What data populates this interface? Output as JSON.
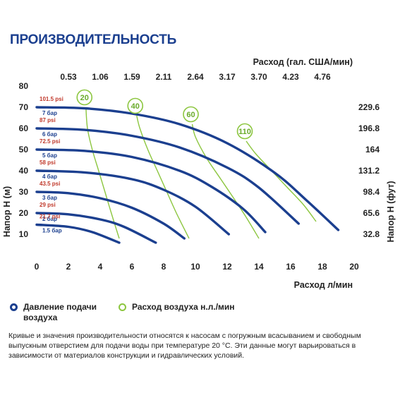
{
  "title": "ПРОИЗВОДИТЕЛЬНОСТЬ",
  "legend": {
    "pressure": "Давление подачи воздуха",
    "air": "Расход воздуха н.л./мин"
  },
  "footnote": "Кривые и значения производительности относятся к насосам с погружным всасыванием и свободным выпускным отверстием для подачи воды при температуре 20 °C. Эти данные могут варьироваться в зависимости от материалов конструкции и гидравлических условий.",
  "chart_data": {
    "type": "line",
    "xlabel": "Расход л/мин",
    "x2label": "Расход (гал. США/мин)",
    "ylabel": "Напор H (м)",
    "y2label": "Напор H (фут)",
    "xlim": [
      0,
      20
    ],
    "ylim": [
      0,
      80
    ],
    "x_ticks": [
      "0",
      "2",
      "4",
      "6",
      "8",
      "10",
      "12",
      "14",
      "16",
      "18",
      "20"
    ],
    "y_ticks": [
      "10",
      "20",
      "30",
      "40",
      "50",
      "60",
      "70",
      "80"
    ],
    "x2_ticks": [
      "0.53",
      "1.06",
      "1.59",
      "2.11",
      "2.64",
      "3.17",
      "3.70",
      "4.23",
      "4.76"
    ],
    "y2_ticks": [
      "32.8",
      "65.6",
      "98.4",
      "131.2",
      "164",
      "196.8",
      "229.6"
    ],
    "grid": false,
    "pressure_color": "#1b3f8f",
    "air_color": "#8cc63f",
    "pressure_curves": [
      {
        "psi": "101.5 psi",
        "bar": "7 бар",
        "points": [
          [
            0,
            70
          ],
          [
            3,
            69.5
          ],
          [
            6,
            67
          ],
          [
            9,
            62
          ],
          [
            12,
            53
          ],
          [
            15,
            39
          ],
          [
            17,
            26
          ],
          [
            19,
            12
          ]
        ]
      },
      {
        "psi": "87 psi",
        "bar": "6 бар",
        "points": [
          [
            0,
            60
          ],
          [
            3,
            59.3
          ],
          [
            6,
            56.5
          ],
          [
            9,
            51
          ],
          [
            12,
            41.5
          ],
          [
            14,
            32
          ],
          [
            16.5,
            15
          ]
        ]
      },
      {
        "psi": "72.5 psi",
        "bar": "5 бар",
        "points": [
          [
            0,
            50
          ],
          [
            3,
            49.4
          ],
          [
            6,
            46.5
          ],
          [
            9,
            40
          ],
          [
            11,
            32.5
          ],
          [
            13,
            22
          ],
          [
            14.4,
            11
          ]
        ]
      },
      {
        "psi": "58 psi",
        "bar": "4 бар",
        "points": [
          [
            0,
            40
          ],
          [
            3,
            39.2
          ],
          [
            6,
            36
          ],
          [
            8,
            31
          ],
          [
            10,
            23
          ],
          [
            12.1,
            10
          ]
        ]
      },
      {
        "psi": "43.5 psi",
        "bar": "3 бар",
        "points": [
          [
            0,
            30
          ],
          [
            2,
            29.4
          ],
          [
            4,
            27
          ],
          [
            6,
            22.5
          ],
          [
            8,
            15
          ],
          [
            9.3,
            8
          ]
        ]
      },
      {
        "psi": "29 psi",
        "bar": "2 бар",
        "points": [
          [
            0,
            20
          ],
          [
            2,
            19.4
          ],
          [
            4,
            17
          ],
          [
            5.5,
            13.5
          ],
          [
            7.5,
            6
          ]
        ]
      },
      {
        "psi": "21.7 psi",
        "bar": "1.5 бар",
        "points": [
          [
            0,
            14.5
          ],
          [
            2,
            13.5
          ],
          [
            3.5,
            11
          ],
          [
            5.2,
            6
          ]
        ]
      }
    ],
    "air_curves": [
      {
        "label": "20",
        "points": [
          [
            3.1,
            70
          ],
          [
            3.2,
            60
          ],
          [
            3.5,
            50
          ],
          [
            3.9,
            40
          ],
          [
            4.3,
            30
          ],
          [
            4.7,
            20
          ],
          [
            5.2,
            8
          ]
        ]
      },
      {
        "label": "40",
        "points": [
          [
            6.3,
            66
          ],
          [
            6.5,
            60
          ],
          [
            7,
            50
          ],
          [
            7.6,
            40
          ],
          [
            8.2,
            30
          ],
          [
            8.8,
            20
          ],
          [
            9.6,
            8
          ]
        ]
      },
      {
        "label": "60",
        "points": [
          [
            9.8,
            62
          ],
          [
            10,
            56
          ],
          [
            10.7,
            46
          ],
          [
            11.6,
            36
          ],
          [
            12.5,
            26
          ],
          [
            13.2,
            18
          ],
          [
            14,
            8
          ]
        ]
      },
      {
        "label": "110",
        "points": [
          [
            13.2,
            54
          ],
          [
            13.8,
            48
          ],
          [
            14.8,
            40
          ],
          [
            15.8,
            32
          ],
          [
            16.8,
            24
          ],
          [
            17.6,
            16
          ]
        ]
      }
    ]
  }
}
